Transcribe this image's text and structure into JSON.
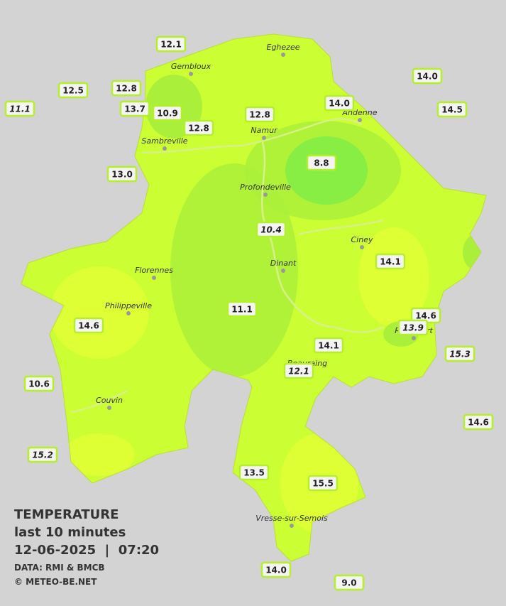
{
  "map": {
    "title": "TEMPERATURE",
    "subtitle": "last 10 minutes",
    "timestamp": "12-06-2025  |  07:20",
    "source": "DATA: RMI & BMCB",
    "copyright": "© METEO-BE.NET",
    "cities": [
      "Eghezee",
      "Gembloux",
      "Andenne",
      "Namur",
      "Sambreville",
      "Profondeville",
      "Ciney",
      "Florennes",
      "Dinant",
      "Philippeville",
      "Beauraing",
      "Rochefort",
      "Couvin",
      "Vresse-sur-Semois"
    ],
    "stations": [
      {
        "label": "12.1",
        "italic": false
      },
      {
        "label": "12.5",
        "italic": false
      },
      {
        "label": "11.1",
        "italic": true
      },
      {
        "label": "12.8",
        "italic": false
      },
      {
        "label": "13.7",
        "italic": false
      },
      {
        "label": "10.9",
        "italic": false
      },
      {
        "label": "12.8",
        "italic": false
      },
      {
        "label": "12.8",
        "italic": false
      },
      {
        "label": "14.0",
        "italic": false
      },
      {
        "label": "14.0",
        "italic": false
      },
      {
        "label": "14.5",
        "italic": false
      },
      {
        "label": "13.0",
        "italic": false
      },
      {
        "label": "8.8",
        "italic": false
      },
      {
        "label": "10.4",
        "italic": true
      },
      {
        "label": "14.1",
        "italic": false
      },
      {
        "label": "11.1",
        "italic": false
      },
      {
        "label": "14.6",
        "italic": false
      },
      {
        "label": "14.6",
        "italic": false
      },
      {
        "label": "13.9",
        "italic": true
      },
      {
        "label": "14.1",
        "italic": false
      },
      {
        "label": "15.3",
        "italic": true
      },
      {
        "label": "12.1",
        "italic": true
      },
      {
        "label": "10.6",
        "italic": false
      },
      {
        "label": "14.6",
        "italic": false
      },
      {
        "label": "15.2",
        "italic": true
      },
      {
        "label": "13.5",
        "italic": false
      },
      {
        "label": "15.5",
        "italic": false
      },
      {
        "label": "14.0",
        "italic": false
      },
      {
        "label": "9.0",
        "italic": false
      }
    ]
  }
}
